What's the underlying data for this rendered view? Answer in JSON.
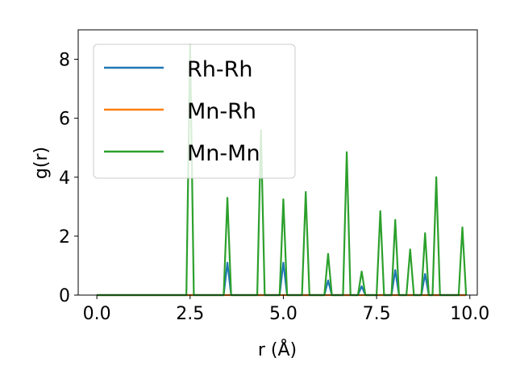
{
  "chart_data": {
    "type": "line",
    "xlabel": "r (Å)",
    "ylabel": "g(r)",
    "xlim": [
      -0.5,
      10.2
    ],
    "ylim": [
      0,
      9
    ],
    "xticks": [
      0.0,
      2.5,
      5.0,
      7.5,
      10.0
    ],
    "xtick_labels": [
      "0.0",
      "2.5",
      "5.0",
      "7.5",
      "10.0"
    ],
    "yticks": [
      0,
      2,
      4,
      6,
      8
    ],
    "ytick_labels": [
      "0",
      "2",
      "4",
      "6",
      "8"
    ],
    "grid": false,
    "legend_position": "upper-left",
    "series": [
      {
        "name": "Rh-Rh",
        "color": "#1f77b4",
        "x": [
          0.0,
          3.4,
          3.5,
          3.6,
          4.9,
          5.0,
          5.1,
          6.1,
          6.2,
          6.3,
          7.0,
          7.1,
          7.2,
          7.9,
          8.0,
          8.1,
          8.7,
          8.8,
          8.9,
          9.9
        ],
        "y": [
          0,
          0,
          1.1,
          0,
          0,
          1.1,
          0,
          0,
          0.5,
          0,
          0,
          0.3,
          0,
          0,
          0.85,
          0,
          0,
          0.72,
          0,
          0
        ]
      },
      {
        "name": "Mn-Rh",
        "color": "#ff7f0e",
        "x": [
          0.0,
          9.9
        ],
        "y": [
          0,
          0
        ]
      },
      {
        "name": "Mn-Mn",
        "color": "#2ca02c",
        "x": [
          0.0,
          2.4,
          2.5,
          2.6,
          3.4,
          3.5,
          3.6,
          4.3,
          4.4,
          4.5,
          4.9,
          5.0,
          5.1,
          5.5,
          5.6,
          5.7,
          6.1,
          6.2,
          6.3,
          6.6,
          6.7,
          6.8,
          7.0,
          7.1,
          7.2,
          7.5,
          7.6,
          7.7,
          7.9,
          8.0,
          8.1,
          8.3,
          8.4,
          8.5,
          8.7,
          8.8,
          8.9,
          9.0,
          9.1,
          9.2,
          9.7,
          9.8,
          9.9
        ],
        "y": [
          0,
          0,
          8.5,
          0,
          0,
          3.3,
          0,
          0,
          5.6,
          0,
          0,
          3.25,
          0,
          0,
          3.5,
          0,
          0,
          1.4,
          0,
          0,
          4.85,
          0,
          0,
          0.8,
          0,
          0,
          2.85,
          0,
          0,
          2.55,
          0,
          0,
          1.55,
          0,
          0,
          2.1,
          0,
          0,
          4.0,
          0,
          0,
          2.3,
          0
        ]
      }
    ]
  }
}
